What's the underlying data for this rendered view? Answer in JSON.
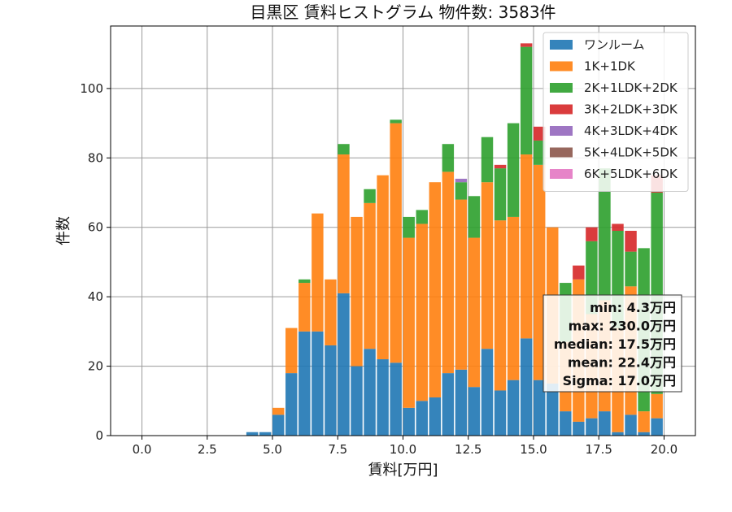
{
  "chart_data": {
    "type": "bar",
    "stacked": true,
    "title": "目黒区 賃料ヒストグラム 物件数: 3583件",
    "xlabel": "賃料[万円]",
    "ylabel": "件数",
    "xlim": [
      -1.2,
      21.2
    ],
    "ylim": [
      0,
      118
    ],
    "xticks": [
      0.0,
      2.5,
      5.0,
      7.5,
      10.0,
      12.5,
      15.0,
      17.5,
      20.0
    ],
    "xtick_labels": [
      "0.0",
      "2.5",
      "5.0",
      "7.5",
      "10.0",
      "12.5",
      "15.0",
      "17.5",
      "20.0"
    ],
    "yticks": [
      0,
      20,
      40,
      60,
      80,
      100
    ],
    "ytick_labels": [
      "0",
      "20",
      "40",
      "60",
      "80",
      "100"
    ],
    "grid": true,
    "legend_position": "top-right",
    "bin_width": 0.5,
    "bin_starts": [
      4.0,
      4.5,
      5.0,
      5.5,
      6.0,
      6.5,
      7.0,
      7.5,
      8.0,
      8.5,
      9.0,
      9.5,
      10.0,
      10.5,
      11.0,
      11.5,
      12.0,
      12.5,
      13.0,
      13.5,
      14.0,
      14.5,
      15.0,
      15.5,
      16.0,
      16.5,
      17.0,
      17.5,
      18.0,
      18.5,
      19.0,
      19.5
    ],
    "series": [
      {
        "name": "ワンルーム",
        "color": "#1f77b4",
        "values": [
          1,
          1,
          6,
          18,
          30,
          30,
          26,
          41,
          20,
          25,
          22,
          21,
          8,
          10,
          11,
          18,
          19,
          14,
          25,
          13,
          16,
          28,
          16,
          15,
          7,
          4,
          5,
          7,
          1,
          6,
          1,
          5
        ]
      },
      {
        "name": "1K+1DK",
        "color": "#ff7f0e",
        "values": [
          0,
          0,
          2,
          13,
          14,
          34,
          19,
          40,
          43,
          42,
          53,
          69,
          49,
          51,
          62,
          58,
          49,
          43,
          48,
          49,
          47,
          53,
          62,
          45,
          20,
          41,
          30,
          32,
          30,
          37,
          6,
          7
        ]
      },
      {
        "name": "2K+1LDK+2DK",
        "color": "#2ca02c",
        "values": [
          0,
          0,
          0,
          0,
          1,
          0,
          0,
          3,
          0,
          4,
          0,
          1,
          6,
          4,
          0,
          8,
          5,
          12,
          13,
          15,
          27,
          31,
          7,
          0,
          17,
          0,
          21,
          38,
          28,
          10,
          47,
          58
        ]
      },
      {
        "name": "3K+2LDK+3DK",
        "color": "#d62728",
        "values": [
          0,
          0,
          0,
          0,
          0,
          0,
          0,
          0,
          0,
          0,
          0,
          0,
          0,
          0,
          0,
          0,
          0,
          0,
          0,
          1,
          0,
          1,
          4,
          0,
          0,
          4,
          4,
          0,
          2,
          6,
          0,
          5
        ]
      },
      {
        "name": "4K+3LDK+4DK",
        "color": "#9467bd",
        "values": [
          0,
          0,
          0,
          0,
          0,
          0,
          0,
          0,
          0,
          0,
          0,
          0,
          0,
          0,
          0,
          0,
          1,
          0,
          0,
          0,
          0,
          0,
          0,
          0,
          0,
          0,
          0,
          0,
          0,
          0,
          0,
          0
        ]
      },
      {
        "name": "5K+4LDK+5DK",
        "color": "#8c564b",
        "values": [
          0,
          0,
          0,
          0,
          0,
          0,
          0,
          0,
          0,
          0,
          0,
          0,
          0,
          0,
          0,
          0,
          0,
          0,
          0,
          0,
          0,
          0,
          0,
          0,
          0,
          0,
          0,
          0,
          0,
          0,
          0,
          0
        ]
      },
      {
        "name": "6K+5LDK+6DK",
        "color": "#e377c2",
        "values": [
          0,
          0,
          0,
          0,
          0,
          0,
          0,
          0,
          0,
          0,
          0,
          0,
          0,
          0,
          0,
          0,
          0,
          0,
          0,
          0,
          0,
          0,
          0,
          0,
          0,
          0,
          0,
          0,
          0,
          0,
          0,
          0
        ]
      }
    ],
    "stats": [
      "min: 4.3万円",
      "max: 230.0万円",
      "median: 17.5万円",
      "mean: 22.4万円",
      "Sigma: 17.0万円"
    ]
  }
}
